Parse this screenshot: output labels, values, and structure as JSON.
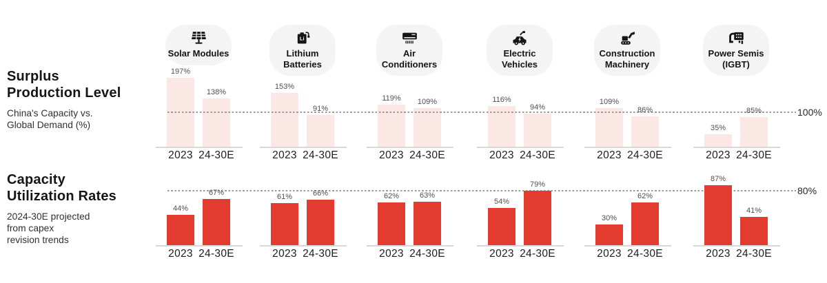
{
  "left_panel": {
    "sections": [
      {
        "title_lines": [
          "Surplus",
          "Production Level"
        ],
        "subtitle_lines": [
          "China's Capacity vs.",
          "Global Demand (%)"
        ]
      },
      {
        "title_lines": [
          "Capacity",
          "Utilization Rates"
        ],
        "subtitle_lines": [
          "2024-30E projected",
          "from capex",
          "revision trends"
        ]
      }
    ]
  },
  "industries": [
    {
      "label": "Solar Modules",
      "icon": "solar-panel-icon"
    },
    {
      "label": "Lithium Batteries",
      "icon": "lithium-battery-icon"
    },
    {
      "label": "Air Conditioners",
      "icon": "air-conditioner-icon"
    },
    {
      "label": "Electric Vehicles",
      "icon": "electric-vehicle-icon"
    },
    {
      "label": "Construction Machinery",
      "icon": "excavator-icon"
    },
    {
      "label": "Power Semis (IGBT)",
      "icon": "power-semiconductor-icon"
    }
  ],
  "chart_data": [
    {
      "type": "bar",
      "title": "Surplus Production Level",
      "subtitle": "China's Capacity vs. Global Demand (%)",
      "unit": "%",
      "categories": [
        "2023",
        "24-30E"
      ],
      "groups": [
        {
          "label": "Solar Modules",
          "values": [
            197,
            138
          ]
        },
        {
          "label": "Lithium Batteries",
          "values": [
            153,
            91
          ]
        },
        {
          "label": "Air Conditioners",
          "values": [
            119,
            109
          ]
        },
        {
          "label": "Electric Vehicles",
          "values": [
            116,
            94
          ]
        },
        {
          "label": "Construction Machinery",
          "values": [
            109,
            86
          ]
        },
        {
          "label": "Power Semis (IGBT)",
          "values": [
            35,
            85
          ]
        }
      ],
      "reference_line": {
        "value": 100,
        "label": "100%"
      },
      "ylim": [
        0,
        210
      ],
      "bar_color": "#fbe7e4",
      "legend_position": "none",
      "grid": false
    },
    {
      "type": "bar",
      "title": "Capacity Utilization Rates",
      "subtitle": "2024-30E projected from capex revision trends",
      "unit": "%",
      "categories": [
        "2023",
        "24-30E"
      ],
      "groups": [
        {
          "label": "Solar Modules",
          "values": [
            44,
            67
          ]
        },
        {
          "label": "Lithium Batteries",
          "values": [
            61,
            66
          ]
        },
        {
          "label": "Air Conditioners",
          "values": [
            62,
            63
          ]
        },
        {
          "label": "Electric Vehicles",
          "values": [
            54,
            79
          ]
        },
        {
          "label": "Construction Machinery",
          "values": [
            30,
            62
          ]
        },
        {
          "label": "Power Semis (IGBT)",
          "values": [
            87,
            41
          ]
        }
      ],
      "reference_line": {
        "value": 80,
        "label": "80%"
      },
      "ylim": [
        0,
        100
      ],
      "bar_color": "#e43b30",
      "legend_position": "none",
      "grid": false
    }
  ],
  "colors": {
    "surplus_bar": "#fbe7e4",
    "utilization_bar": "#e43b30",
    "pill_background": "#f4f4f5",
    "reference_line": "#9b9b9b",
    "baseline": "#d8d8d8",
    "value_label": "#4f4f4f",
    "text_primary": "#151515"
  }
}
